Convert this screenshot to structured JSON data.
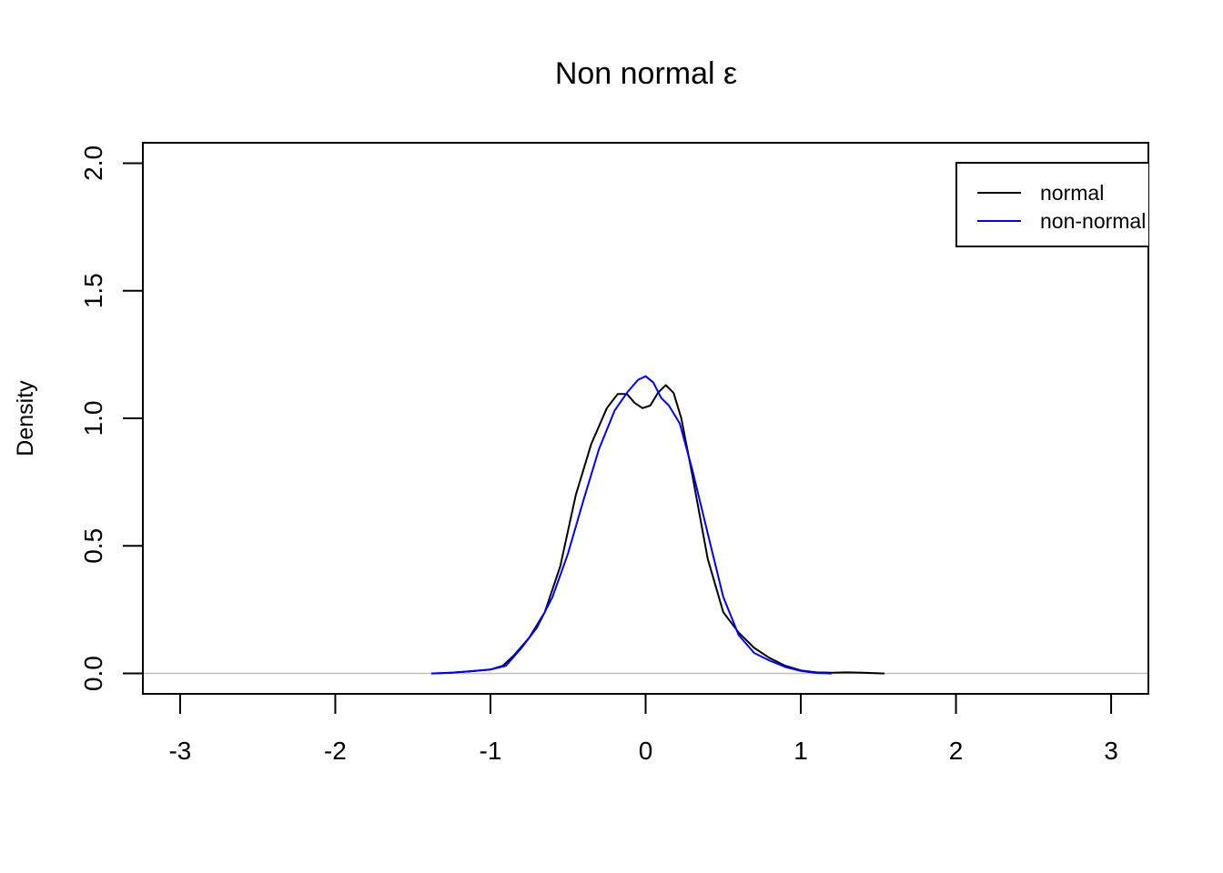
{
  "chart_data": {
    "type": "line",
    "title": "Non normal ε",
    "xlabel": "",
    "ylabel": "Density",
    "xlim": [
      -3.24,
      3.24
    ],
    "ylim": [
      -0.08,
      2.08
    ],
    "xticks": [
      -3,
      -2,
      -1,
      0,
      1,
      2,
      3
    ],
    "xtick_labels": [
      "-3",
      "-2",
      "-1",
      "0",
      "1",
      "2",
      "3"
    ],
    "yticks": [
      0,
      0.5,
      1,
      1.5,
      2
    ],
    "ytick_labels": [
      "0.0",
      "0.5",
      "1.0",
      "1.5",
      "2.0"
    ],
    "baseline_color": "#bebebe",
    "grid": false,
    "legend_position": "top-right",
    "series": [
      {
        "name": "normal",
        "color": "#000000",
        "x": [
          -1.38,
          -1.25,
          -1.1,
          -1.0,
          -0.92,
          -0.85,
          -0.75,
          -0.65,
          -0.55,
          -0.45,
          -0.35,
          -0.25,
          -0.18,
          -0.12,
          -0.07,
          -0.02,
          0.03,
          0.08,
          0.13,
          0.18,
          0.23,
          0.3,
          0.4,
          0.5,
          0.6,
          0.7,
          0.8,
          0.9,
          1.0,
          1.1,
          1.2,
          1.3,
          1.4,
          1.54
        ],
        "y": [
          0.0,
          0.003,
          0.01,
          0.015,
          0.03,
          0.07,
          0.14,
          0.24,
          0.42,
          0.7,
          0.9,
          1.04,
          1.095,
          1.095,
          1.06,
          1.04,
          1.05,
          1.1,
          1.13,
          1.1,
          1.0,
          0.78,
          0.45,
          0.24,
          0.16,
          0.1,
          0.06,
          0.03,
          0.012,
          0.004,
          0.003,
          0.004,
          0.003,
          0.0
        ]
      },
      {
        "name": "non-normal",
        "color": "#0000ff",
        "x": [
          -1.38,
          -1.25,
          -1.1,
          -1.0,
          -0.9,
          -0.8,
          -0.7,
          -0.6,
          -0.5,
          -0.4,
          -0.3,
          -0.2,
          -0.12,
          -0.05,
          0.0,
          0.05,
          0.1,
          0.15,
          0.22,
          0.3,
          0.4,
          0.5,
          0.6,
          0.7,
          0.8,
          0.9,
          1.0,
          1.1,
          1.2
        ],
        "y": [
          0.0,
          0.003,
          0.01,
          0.015,
          0.03,
          0.1,
          0.18,
          0.3,
          0.47,
          0.68,
          0.88,
          1.03,
          1.1,
          1.15,
          1.165,
          1.14,
          1.08,
          1.05,
          0.98,
          0.8,
          0.55,
          0.3,
          0.15,
          0.08,
          0.05,
          0.025,
          0.01,
          0.002,
          0.0
        ]
      }
    ]
  }
}
